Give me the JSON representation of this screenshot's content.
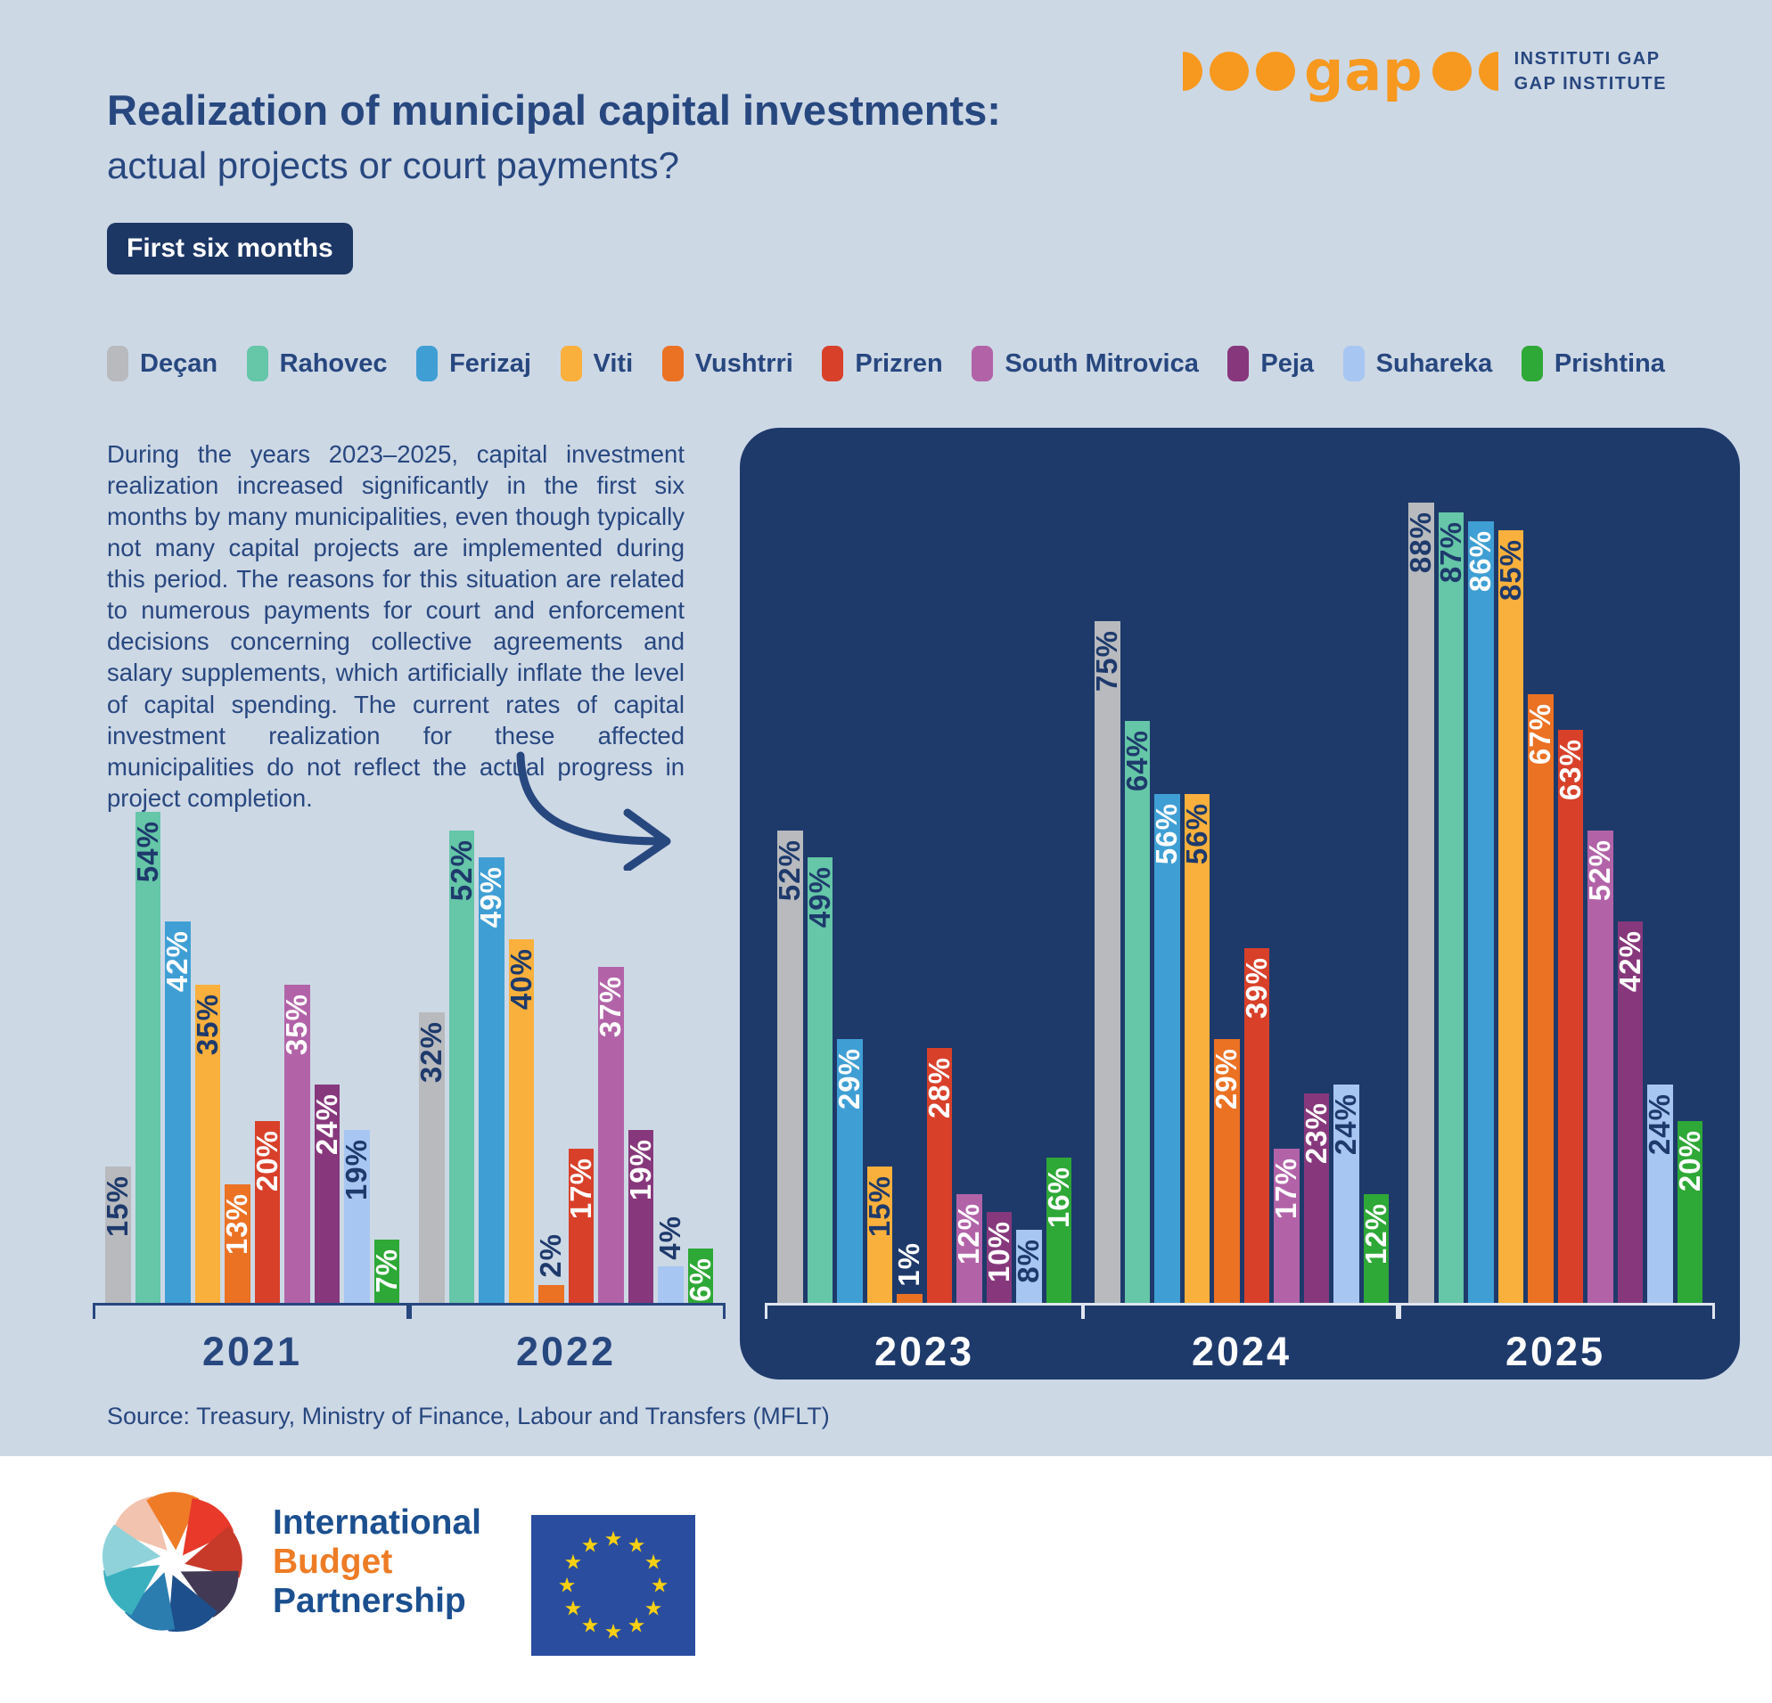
{
  "header": {
    "logo_word": "gap",
    "logo_text1": "INSTITUTI GAP",
    "logo_text2": "GAP INSTITUTE",
    "title": "Realization of municipal capital investments:",
    "subtitle": "actual projects or court payments?",
    "badge": "First six months"
  },
  "intro": "During the years 2023–2025, capital investment realization increased significantly in the first six months by many municipalities, even though typically not many capital projects are implemented during this period. The reasons for this situation are related to numerous payments for court and enforcement decisions concerning collective agreements and salary supplements, which artificially inflate the level of capital spending. The current rates of capital investment realization for these affected municipalities do not reflect the actual progress in project completion.",
  "legend": [
    {
      "label": "Deçan",
      "color": "#b8babe"
    },
    {
      "label": "Rahovec",
      "color": "#65c6a8"
    },
    {
      "label": "Ferizaj",
      "color": "#3f9fd4"
    },
    {
      "label": "Viti",
      "color": "#f9b03c"
    },
    {
      "label": "Vushtrri",
      "color": "#eb7123"
    },
    {
      "label": "Prizren",
      "color": "#d8402a"
    },
    {
      "label": "South Mitrovica",
      "color": "#b263a8"
    },
    {
      "label": "Peja",
      "color": "#87387c"
    },
    {
      "label": "Suhareka",
      "color": "#a7c7f2"
    },
    {
      "label": "Prishtina",
      "color": "#2ea836"
    }
  ],
  "chart_data": {
    "type": "bar",
    "title": "Realization of municipal capital investments, first six months",
    "unit": "%",
    "ylim": [
      0,
      100
    ],
    "legend_position": "top",
    "grid": false,
    "categories": [
      "Deçan",
      "Rahovec",
      "Ferizaj",
      "Viti",
      "Vushtrri",
      "Prizren",
      "South Mitrovica",
      "Peja",
      "Suhareka",
      "Prishtina"
    ],
    "colors": [
      "#b8babe",
      "#65c6a8",
      "#3f9fd4",
      "#f9b03c",
      "#eb7123",
      "#d8402a",
      "#b263a8",
      "#87387c",
      "#a7c7f2",
      "#2ea836"
    ],
    "groups": [
      {
        "year": "2021",
        "panel": "light",
        "values": [
          15,
          54,
          42,
          35,
          13,
          20,
          35,
          24,
          19,
          7
        ]
      },
      {
        "year": "2022",
        "panel": "light",
        "values": [
          32,
          52,
          49,
          40,
          2,
          17,
          37,
          19,
          4,
          6
        ]
      },
      {
        "year": "2023",
        "panel": "dark",
        "values": [
          52,
          49,
          29,
          15,
          1,
          28,
          12,
          10,
          8,
          16
        ]
      },
      {
        "year": "2024",
        "panel": "dark",
        "values": [
          75,
          64,
          56,
          56,
          29,
          39,
          17,
          23,
          24,
          12
        ]
      },
      {
        "year": "2025",
        "panel": "dark",
        "values": [
          88,
          87,
          86,
          85,
          67,
          63,
          52,
          42,
          24,
          20
        ]
      }
    ]
  },
  "source": "Source: Treasury, Ministry of Finance, Labour and Transfers (MFLT)",
  "footer": {
    "ibp_lines": [
      "International",
      "Budget",
      "Partnership"
    ],
    "pinwheel_colors": [
      "#f2c3ae",
      "#ef7b27",
      "#e8392b",
      "#c73a2a",
      "#423a54",
      "#1d4f8c",
      "#2b7db0",
      "#3ab0bf",
      "#8fd2da"
    ],
    "eu_star_color": "#f8d012",
    "eu_flag_color": "#2a4da0"
  }
}
